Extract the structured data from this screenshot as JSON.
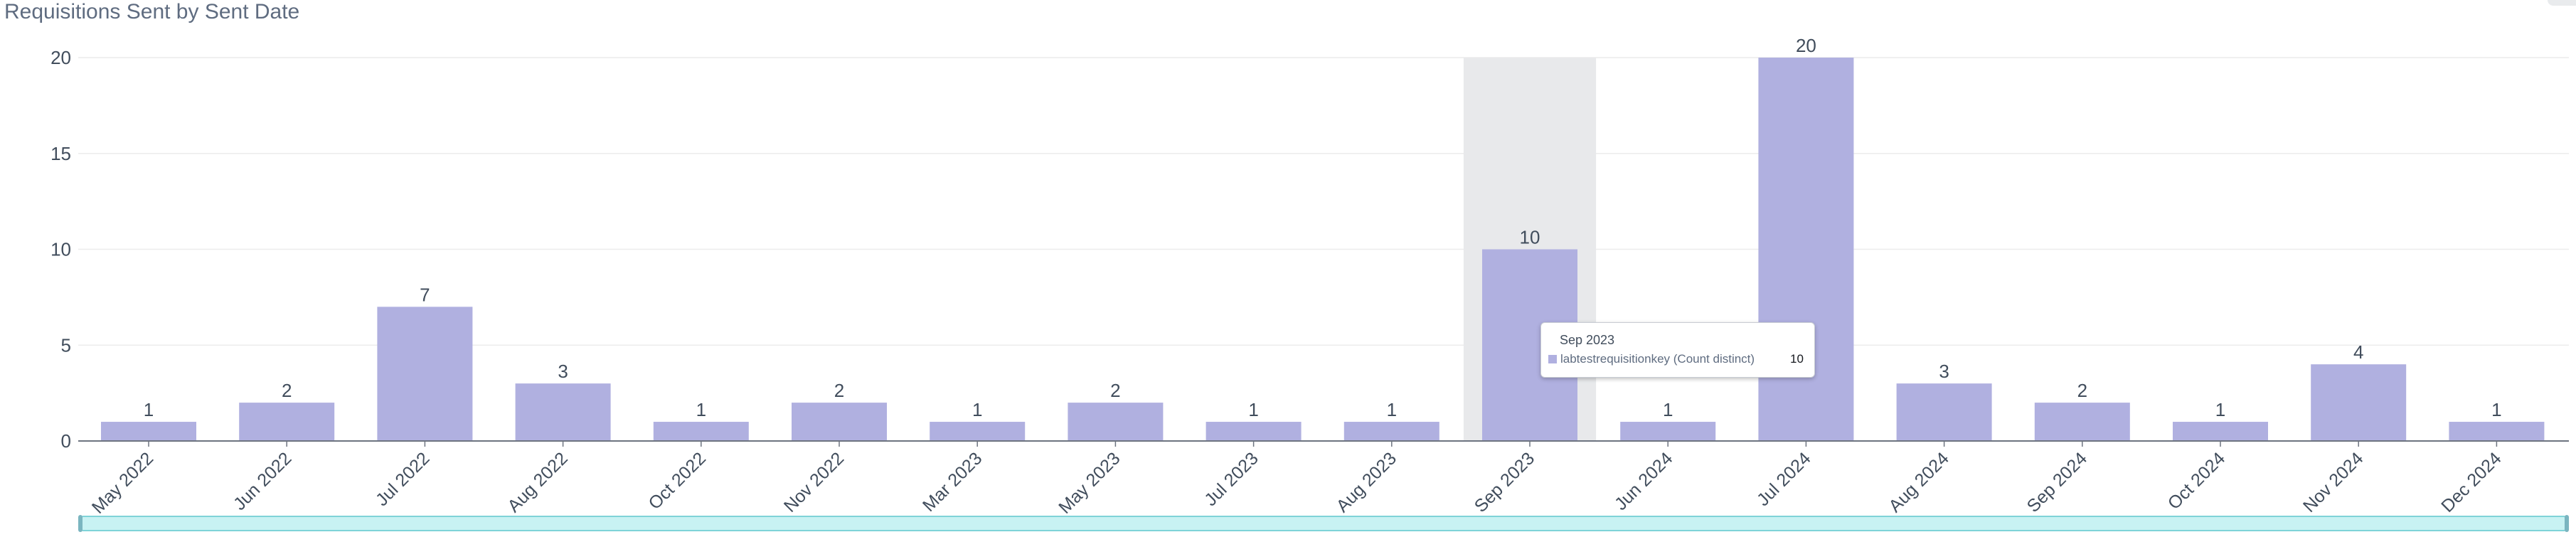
{
  "title": "Requisitions Sent by Sent Date",
  "colors": {
    "bar": "#b0b0e0",
    "highlight_band": "#e8e9eb",
    "grid": "#ececec",
    "axis": "#6d7480",
    "text": "#414d5c",
    "scrollbar_fill": "#c8f2f3",
    "scrollbar_border": "#7fd3d8",
    "scrollbar_handle": "#7ab5c0"
  },
  "chart_data": {
    "type": "bar",
    "title": "Requisitions Sent by Sent Date",
    "xlabel": "",
    "ylabel": "",
    "categories": [
      "May 2022",
      "Jun 2022",
      "Jul 2022",
      "Aug 2022",
      "Oct 2022",
      "Nov 2022",
      "Mar 2023",
      "May 2023",
      "Jul 2023",
      "Aug 2023",
      "Sep 2023",
      "Jun 2024",
      "Jul 2024",
      "Aug 2024",
      "Sep 2024",
      "Oct 2024",
      "Nov 2024",
      "Dec 2024"
    ],
    "values": [
      1,
      2,
      7,
      3,
      1,
      2,
      1,
      2,
      1,
      1,
      10,
      1,
      20,
      3,
      2,
      1,
      4,
      1
    ],
    "ylim": [
      0,
      20
    ],
    "yticks": [
      0,
      5,
      10,
      15,
      20
    ],
    "grid": true,
    "highlighted_category": "Sep 2023"
  },
  "tooltip": {
    "title": "Sep 2023",
    "series": "labtestrequisitionkey (Count distinct)",
    "value": "10"
  }
}
